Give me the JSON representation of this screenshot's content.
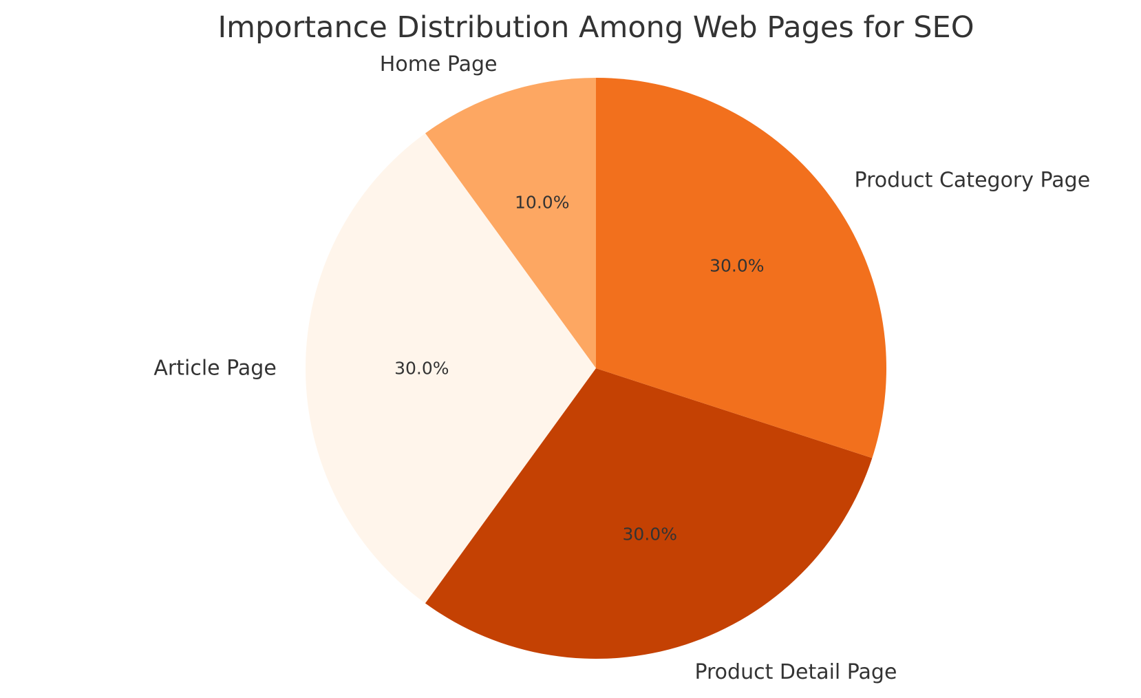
{
  "chart_data": {
    "type": "pie",
    "title": "Importance Distribution Among Web Pages for SEO",
    "categories": [
      "Home Page",
      "Article Page",
      "Product Detail Page",
      "Product Category Page"
    ],
    "values": [
      10,
      30,
      30,
      30
    ],
    "percent_labels": [
      "10.0%",
      "30.0%",
      "30.0%",
      "30.0%"
    ],
    "colors": [
      "#fda762",
      "#fff5eb",
      "#c44103",
      "#f2701d"
    ],
    "start_angle_deg": 90,
    "direction": "counterclockwise",
    "legend": "none"
  }
}
